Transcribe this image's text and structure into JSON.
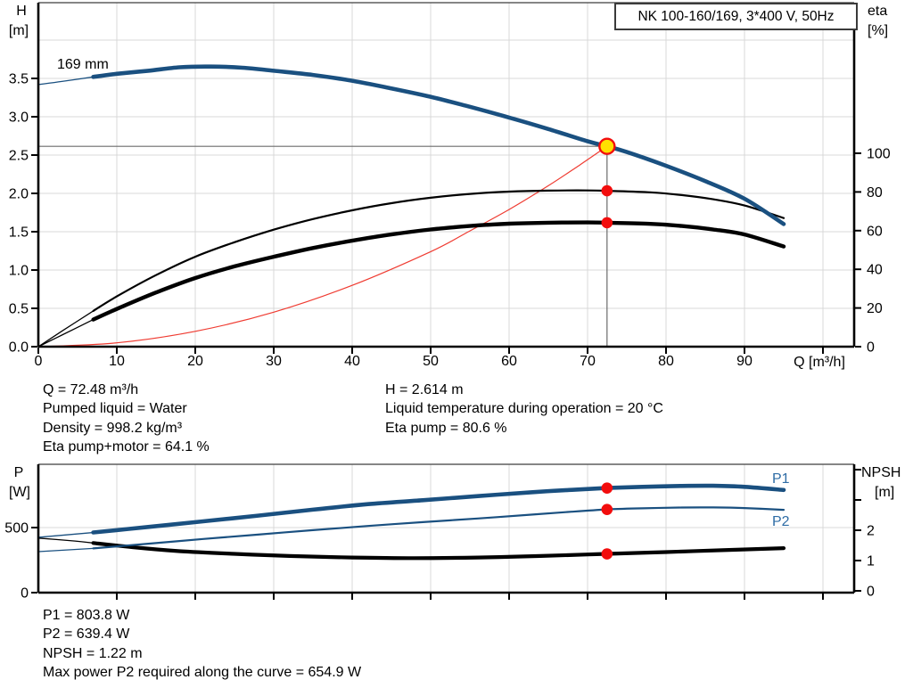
{
  "title_box": {
    "label": "NK 100-160/169, 3*400 V, 50Hz"
  },
  "colors": {
    "blue": "#1a5080",
    "label_blue": "#2e6ca5",
    "black": "#000000",
    "red": "#ef3b31",
    "dot_red": "#f20d0d",
    "yellow": "#ffdf00",
    "grid": "#d8d8d8",
    "frame_top": "#3f3f3f",
    "crosshair": "#6b6b6b",
    "text": "#000000"
  },
  "info_top": {
    "left": [
      "Q = 72.48 m³/h",
      "Pumped liquid = Water",
      "Density = 998.2 kg/m³",
      "Eta pump+motor = 64.1 %"
    ],
    "right": [
      "H = 2.614 m",
      "Liquid temperature during operation = 20 °C",
      "Eta pump = 80.6 %"
    ]
  },
  "info_bottom": {
    "lines": [
      "P1 = 803.8 W",
      "P2 = 639.4 W",
      "NPSH = 1.22 m",
      "Max power P2 required along the curve = 654.9 W"
    ]
  },
  "chart_data": [
    {
      "id": "qh",
      "type": "line",
      "title": "NK 100-160/169, 3*400 V, 50Hz",
      "xlabel": "Q [m³/h]",
      "ylabel_left": "H [m]",
      "ylabel_right": "eta [%]",
      "xlim": [
        0,
        104
      ],
      "ylim_left": [
        0,
        4.49
      ],
      "ylim_right": [
        0,
        178
      ],
      "frame": {
        "l": 43,
        "r": 958,
        "t": 3,
        "b": 389
      },
      "scales": {
        "x": {
          "v0": 0,
          "p0": 43,
          "v1": 10,
          "p1": 131
        },
        "left": {
          "v0": 0,
          "p0": 389,
          "v1": 1,
          "p1": 303
        },
        "right": {
          "v0": 0,
          "p0": 389,
          "v1": 100,
          "p1": 172
        }
      },
      "x_axis": {
        "grid": [
          10,
          20,
          30,
          40,
          50,
          60,
          70,
          80,
          90,
          100
        ],
        "ticks": [
          {
            "v": 0,
            "t": "0"
          },
          {
            "v": 10,
            "t": "10"
          },
          {
            "v": 20,
            "t": "20"
          },
          {
            "v": 30,
            "t": "30"
          },
          {
            "v": 40,
            "t": "40"
          },
          {
            "v": 50,
            "t": "50"
          },
          {
            "v": 60,
            "t": "60"
          },
          {
            "v": 70,
            "t": "70"
          },
          {
            "v": 80,
            "t": "80"
          },
          {
            "v": 90,
            "t": "90"
          },
          {
            "v": 100,
            "t": ""
          }
        ]
      },
      "y_left": {
        "grid": [
          0.5,
          1,
          1.5,
          2,
          2.5,
          3,
          3.5,
          4
        ],
        "ticks": [
          {
            "v": 0,
            "t": "0.0"
          },
          {
            "v": 0.5,
            "t": "0.5"
          },
          {
            "v": 1,
            "t": "1.0"
          },
          {
            "v": 1.5,
            "t": "1.5"
          },
          {
            "v": 2,
            "t": "2.0"
          },
          {
            "v": 2.5,
            "t": "2.5"
          },
          {
            "v": 3,
            "t": "3.0"
          },
          {
            "v": 3.5,
            "t": "3.5"
          }
        ]
      },
      "y_right": {
        "ticks": [
          {
            "v": 0,
            "t": "0"
          },
          {
            "v": 20,
            "t": "20"
          },
          {
            "v": 40,
            "t": "40"
          },
          {
            "v": 60,
            "t": "60"
          },
          {
            "v": 80,
            "t": "80"
          },
          {
            "v": 100,
            "t": "100"
          }
        ]
      },
      "series": [
        {
          "name": "affinity-curve",
          "axis": "left",
          "color": "red",
          "width": 1.2,
          "points": [
            [
              0,
              0
            ],
            [
              10,
              0.05
            ],
            [
              20,
              0.2
            ],
            [
              30,
              0.45
            ],
            [
              40,
              0.8
            ],
            [
              50,
              1.24
            ],
            [
              55,
              1.51
            ],
            [
              60,
              1.79
            ],
            [
              65,
              2.1
            ],
            [
              69,
              2.37
            ],
            [
              72.48,
              2.614
            ]
          ]
        },
        {
          "name": "eta-pump-curve",
          "axis": "right",
          "color": "black",
          "width": 2.2,
          "thin_until": 7,
          "points": [
            [
              0,
              0
            ],
            [
              3,
              8
            ],
            [
              7,
              18.5
            ],
            [
              10,
              26
            ],
            [
              15,
              37
            ],
            [
              20,
              46.5
            ],
            [
              25,
              54
            ],
            [
              30,
              60.5
            ],
            [
              35,
              66
            ],
            [
              40,
              70.5
            ],
            [
              45,
              74.2
            ],
            [
              50,
              77
            ],
            [
              55,
              79
            ],
            [
              60,
              80.2
            ],
            [
              65,
              80.7
            ],
            [
              70,
              80.8
            ],
            [
              72.48,
              80.6
            ],
            [
              78,
              79.8
            ],
            [
              82,
              78.4
            ],
            [
              86,
              76.2
            ],
            [
              90,
              73
            ],
            [
              95,
              66.5
            ]
          ]
        },
        {
          "name": "eta-pump-motor-curve",
          "axis": "right",
          "color": "black",
          "width": 4.4,
          "thin_until": 7,
          "points": [
            [
              0,
              0
            ],
            [
              3,
              6
            ],
            [
              7,
              14
            ],
            [
              10,
              19.5
            ],
            [
              15,
              28
            ],
            [
              20,
              35.5
            ],
            [
              25,
              41.5
            ],
            [
              30,
              46.5
            ],
            [
              35,
              51
            ],
            [
              40,
              54.8
            ],
            [
              45,
              58
            ],
            [
              50,
              60.6
            ],
            [
              55,
              62.4
            ],
            [
              60,
              63.6
            ],
            [
              65,
              64.1
            ],
            [
              70,
              64.25
            ],
            [
              72.48,
              64.1
            ],
            [
              78,
              63.5
            ],
            [
              82,
              62.4
            ],
            [
              86,
              60.6
            ],
            [
              90,
              58
            ],
            [
              95,
              51.8
            ]
          ]
        },
        {
          "name": "head-curve-169mm",
          "axis": "left",
          "color": "blue",
          "width": 4.6,
          "thin_until": 7,
          "points": [
            [
              0,
              3.42
            ],
            [
              3,
              3.46
            ],
            [
              7,
              3.52
            ],
            [
              10,
              3.56
            ],
            [
              14,
              3.6
            ],
            [
              18,
              3.645
            ],
            [
              22,
              3.655
            ],
            [
              26,
              3.64
            ],
            [
              30,
              3.6
            ],
            [
              35,
              3.545
            ],
            [
              40,
              3.47
            ],
            [
              45,
              3.37
            ],
            [
              50,
              3.26
            ],
            [
              55,
              3.13
            ],
            [
              60,
              2.99
            ],
            [
              65,
              2.84
            ],
            [
              70,
              2.68
            ],
            [
              72.48,
              2.614
            ],
            [
              75,
              2.54
            ],
            [
              80,
              2.36
            ],
            [
              85,
              2.16
            ],
            [
              90,
              1.93
            ],
            [
              95,
              1.6
            ]
          ]
        }
      ],
      "crosshair": {
        "q": 72.48,
        "v": 2.614,
        "axis": "left"
      },
      "markers": [
        {
          "q": 72.48,
          "v": 2.614,
          "axis": "left",
          "style": "duty",
          "name": "duty-point-marker"
        },
        {
          "q": 72.48,
          "v": 80.6,
          "axis": "right",
          "style": "dot",
          "name": "eta-pump-marker"
        },
        {
          "q": 72.48,
          "v": 64.1,
          "axis": "right",
          "style": "dot",
          "name": "eta-pump-motor-marker"
        }
      ],
      "annotations": [
        {
          "name": "y-left-axis-title-line1",
          "text": "H",
          "x": 24,
          "y": 17,
          "anchor": "middle",
          "color": "text"
        },
        {
          "name": "y-left-axis-title-line2",
          "text": "[m]",
          "x": 21,
          "y": 39,
          "anchor": "middle",
          "color": "text"
        },
        {
          "name": "y-right-axis-title-line1",
          "text": "eta",
          "x": 973,
          "y": 17,
          "anchor": "start",
          "color": "text"
        },
        {
          "name": "y-right-axis-title-line2",
          "text": "[%]",
          "x": 973,
          "y": 39,
          "anchor": "start",
          "color": "text"
        },
        {
          "name": "x-axis-title",
          "text": "Q [m³/h]",
          "x": 919,
          "y": 411,
          "anchor": "middle",
          "color": "text"
        },
        {
          "name": "impeller-diameter-label",
          "text": "169 mm",
          "x": 64,
          "y": 77,
          "anchor": "start",
          "color": "text"
        }
      ]
    },
    {
      "id": "power-npsh",
      "type": "line",
      "xlabel": "",
      "ylabel_left": "P [W]",
      "ylabel_right": "NPSH [m]",
      "xlim": [
        0,
        104
      ],
      "ylim_left": [
        0,
        986
      ],
      "ylim_right": [
        0,
        4.2
      ],
      "frame": {
        "l": 43,
        "r": 958,
        "t": 521,
        "b": 665
      },
      "scales": {
        "x": {
          "v0": 0,
          "p0": 43,
          "v1": 10,
          "p1": 131
        },
        "left": {
          "v0": 0,
          "p0": 665,
          "v1": 500,
          "p1": 592
        },
        "right": {
          "v0": 0,
          "p0": 663,
          "v1": 1,
          "p1": 629
        }
      },
      "x_axis": {
        "grid": [
          10,
          20,
          30,
          40,
          50,
          60,
          70,
          80,
          90,
          100
        ],
        "ticks": [
          {
            "v": 10,
            "t": ""
          },
          {
            "v": 20,
            "t": ""
          },
          {
            "v": 30,
            "t": ""
          },
          {
            "v": 40,
            "t": ""
          },
          {
            "v": 50,
            "t": ""
          },
          {
            "v": 60,
            "t": ""
          },
          {
            "v": 70,
            "t": ""
          },
          {
            "v": 80,
            "t": ""
          },
          {
            "v": 90,
            "t": ""
          },
          {
            "v": 100,
            "t": ""
          }
        ]
      },
      "y_left": {
        "grid": [
          500
        ],
        "ticks": [
          {
            "v": 0,
            "t": "0"
          },
          {
            "v": 500,
            "t": "500"
          }
        ]
      },
      "y_right": {
        "ticks": [
          {
            "v": 0,
            "t": "0"
          },
          {
            "v": 1,
            "t": "1"
          },
          {
            "v": 2,
            "t": "2"
          },
          {
            "v": 3,
            "t": ""
          },
          {
            "v": 4,
            "t": ""
          }
        ]
      },
      "series": [
        {
          "name": "npsh-curve",
          "axis": "right",
          "color": "black",
          "width": 4.2,
          "thin_until": 7,
          "points": [
            [
              0,
              1.74
            ],
            [
              4,
              1.66
            ],
            [
              7,
              1.58
            ],
            [
              12,
              1.44
            ],
            [
              18,
              1.31
            ],
            [
              25,
              1.22
            ],
            [
              32,
              1.15
            ],
            [
              40,
              1.1
            ],
            [
              48,
              1.08
            ],
            [
              56,
              1.1
            ],
            [
              64,
              1.15
            ],
            [
              70,
              1.2
            ],
            [
              72.48,
              1.22
            ],
            [
              80,
              1.28
            ],
            [
              88,
              1.35
            ],
            [
              95,
              1.41
            ]
          ]
        },
        {
          "name": "p2-curve",
          "axis": "left",
          "color": "blue",
          "width": 2.2,
          "thin_until": 7,
          "points": [
            [
              0,
              315
            ],
            [
              7,
              340
            ],
            [
              14,
              376
            ],
            [
              21,
              412
            ],
            [
              28,
              446
            ],
            [
              35,
              480
            ],
            [
              42,
              512
            ],
            [
              49,
              542
            ],
            [
              56,
              570
            ],
            [
              63,
              600
            ],
            [
              68,
              622
            ],
            [
              72.48,
              639.4
            ],
            [
              77,
              648
            ],
            [
              82,
              654
            ],
            [
              86,
              654.9
            ],
            [
              90,
              650
            ],
            [
              95,
              636
            ]
          ]
        },
        {
          "name": "p1-curve",
          "axis": "left",
          "color": "blue",
          "width": 4.6,
          "thin_until": 7,
          "points": [
            [
              0,
              425
            ],
            [
              7,
              462
            ],
            [
              14,
              505
            ],
            [
              21,
              548
            ],
            [
              28,
              592
            ],
            [
              35,
              638
            ],
            [
              42,
              680
            ],
            [
              49,
              710
            ],
            [
              56,
              742
            ],
            [
              63,
              772
            ],
            [
              68,
              790
            ],
            [
              72.48,
              803.8
            ],
            [
              77,
              813
            ],
            [
              82,
              820
            ],
            [
              86,
              821
            ],
            [
              90,
              813
            ],
            [
              95,
              789
            ]
          ]
        }
      ],
      "markers": [
        {
          "q": 72.48,
          "v": 803.8,
          "axis": "left",
          "style": "dot",
          "name": "p1-marker"
        },
        {
          "q": 72.48,
          "v": 639.4,
          "axis": "left",
          "style": "dot",
          "name": "p2-marker"
        },
        {
          "q": 72.48,
          "v": 1.22,
          "axis": "right",
          "style": "dot",
          "name": "npsh-marker"
        }
      ],
      "annotations": [
        {
          "name": "y-left-axis-title-line1",
          "text": "P",
          "x": 21,
          "y": 535,
          "anchor": "middle",
          "color": "text"
        },
        {
          "name": "y-left-axis-title-line2",
          "text": "[W]",
          "x": 22,
          "y": 557,
          "anchor": "middle",
          "color": "text"
        },
        {
          "name": "y-right-axis-title-line1",
          "text": "NPSH",
          "x": 966,
          "y": 535,
          "anchor": "start",
          "color": "text"
        },
        {
          "name": "y-right-axis-title-line2",
          "text": "[m]",
          "x": 981,
          "y": 557,
          "anchor": "start",
          "color": "text"
        },
        {
          "name": "p1-curve-label",
          "text": "P1",
          "x": 866,
          "y": 542,
          "anchor": "start",
          "color": "label_blue"
        },
        {
          "name": "p2-curve-label",
          "text": "P2",
          "x": 866,
          "y": 590,
          "anchor": "start",
          "color": "label_blue"
        }
      ]
    }
  ]
}
